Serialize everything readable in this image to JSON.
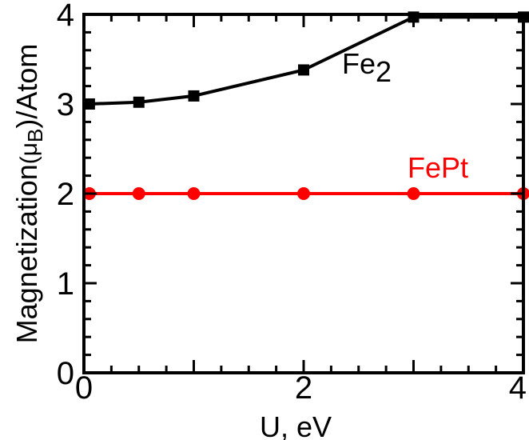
{
  "chart_data": {
    "type": "line",
    "xlabel": "U, eV",
    "ylabel": {
      "main": "Magnetization",
      "unit_prefix": "(μ",
      "unit_sub": "B",
      "unit_suffix": ")/Atom"
    },
    "xlim": [
      0,
      4
    ],
    "ylim": [
      0,
      4
    ],
    "xticks": [
      0,
      2,
      4
    ],
    "yticks": [
      0,
      1,
      2,
      3,
      4
    ],
    "grid": false,
    "series": [
      {
        "label_main": "Fe",
        "label_sub": "2",
        "marker": "square",
        "color": "#000000",
        "x": [
          0.05,
          0.5,
          1.0,
          2.0,
          3.0,
          4.0
        ],
        "y": [
          3.0,
          3.02,
          3.09,
          3.38,
          3.97,
          3.97
        ]
      },
      {
        "label_main": "FePt",
        "label_sub": "",
        "marker": "circle",
        "color": "#ff0000",
        "x": [
          0.05,
          0.5,
          1.0,
          2.0,
          3.0,
          4.0
        ],
        "y": [
          2.0,
          2.0,
          2.0,
          2.0,
          2.0,
          2.0
        ]
      }
    ]
  }
}
